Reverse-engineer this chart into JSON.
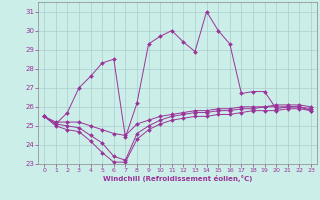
{
  "title": "",
  "xlabel": "Windchill (Refroidissement éolien,°C)",
  "background_color": "#cceee8",
  "grid_color": "#aacccc",
  "line_color": "#993399",
  "xlim": [
    -0.5,
    23.5
  ],
  "ylim": [
    23,
    31.5
  ],
  "xticks": [
    0,
    1,
    2,
    3,
    4,
    5,
    6,
    7,
    8,
    9,
    10,
    11,
    12,
    13,
    14,
    15,
    16,
    17,
    18,
    19,
    20,
    21,
    22,
    23
  ],
  "yticks": [
    23,
    24,
    25,
    26,
    27,
    28,
    29,
    30,
    31
  ],
  "series": [
    {
      "x": [
        0,
        1,
        2,
        3,
        4,
        5,
        6,
        7,
        8,
        9,
        10,
        11,
        12,
        13,
        14,
        15,
        16,
        17,
        18,
        19,
        20,
        21,
        22,
        23
      ],
      "y": [
        25.5,
        25.1,
        25.7,
        27.0,
        27.6,
        28.3,
        28.5,
        24.4,
        26.2,
        29.3,
        29.7,
        30.0,
        29.4,
        28.9,
        31.0,
        30.0,
        29.3,
        26.7,
        26.8,
        26.8,
        25.9,
        26.0,
        26.0,
        25.8
      ]
    },
    {
      "x": [
        0,
        1,
        2,
        3,
        4,
        5,
        6,
        7,
        8,
        9,
        10,
        11,
        12,
        13,
        14,
        15,
        16,
        17,
        18,
        19,
        20,
        21,
        22,
        23
      ],
      "y": [
        25.5,
        25.0,
        24.8,
        24.7,
        24.2,
        23.6,
        23.1,
        23.1,
        24.3,
        24.8,
        25.1,
        25.3,
        25.4,
        25.5,
        25.5,
        25.6,
        25.6,
        25.7,
        25.8,
        25.8,
        25.8,
        25.9,
        25.9,
        25.8
      ]
    },
    {
      "x": [
        0,
        1,
        2,
        3,
        4,
        5,
        6,
        7,
        8,
        9,
        10,
        11,
        12,
        13,
        14,
        15,
        16,
        17,
        18,
        19,
        20,
        21,
        22,
        23
      ],
      "y": [
        25.5,
        25.1,
        25.0,
        24.9,
        24.5,
        24.1,
        23.4,
        23.2,
        24.6,
        25.0,
        25.3,
        25.5,
        25.6,
        25.7,
        25.7,
        25.8,
        25.8,
        25.9,
        25.9,
        26.0,
        26.0,
        26.0,
        26.0,
        25.9
      ]
    },
    {
      "x": [
        0,
        1,
        2,
        3,
        4,
        5,
        6,
        7,
        8,
        9,
        10,
        11,
        12,
        13,
        14,
        15,
        16,
        17,
        18,
        19,
        20,
        21,
        22,
        23
      ],
      "y": [
        25.5,
        25.2,
        25.2,
        25.2,
        25.0,
        24.8,
        24.6,
        24.5,
        25.1,
        25.3,
        25.5,
        25.6,
        25.7,
        25.8,
        25.8,
        25.9,
        25.9,
        26.0,
        26.0,
        26.0,
        26.1,
        26.1,
        26.1,
        26.0
      ]
    }
  ]
}
